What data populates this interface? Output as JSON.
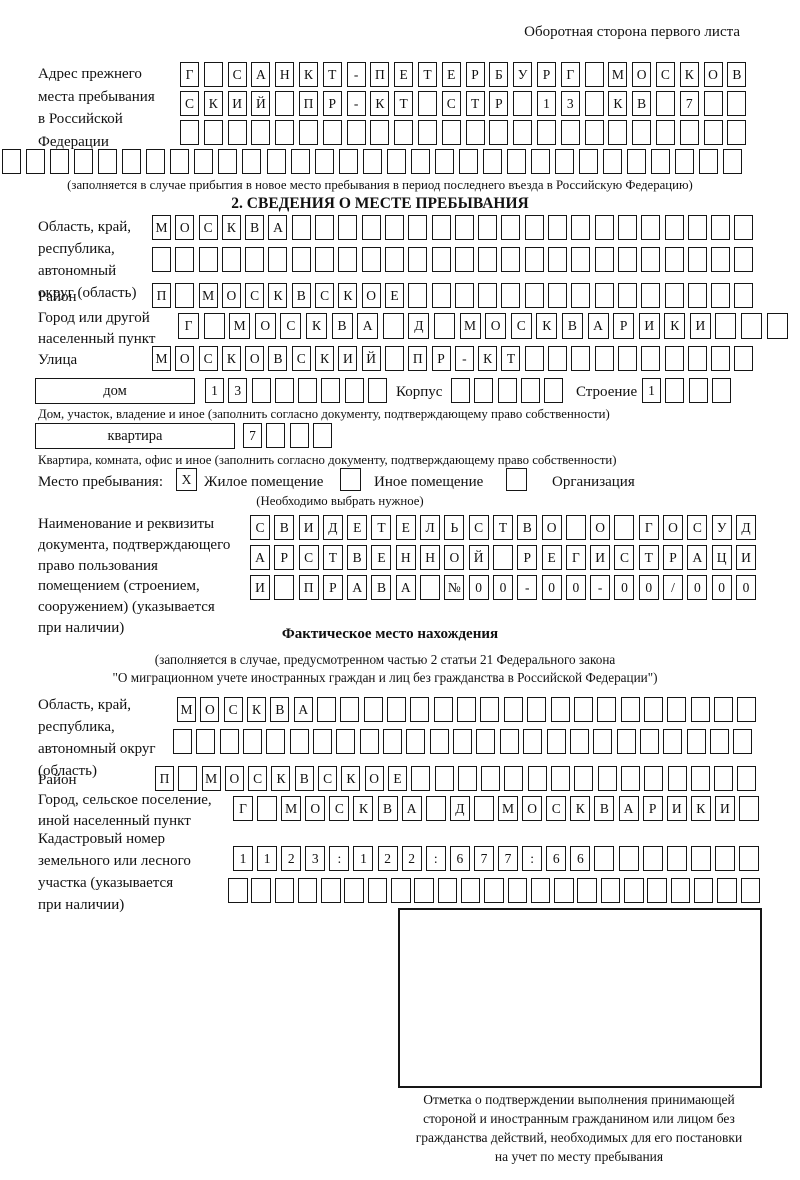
{
  "page_title": "Оборотная сторона первого листа",
  "prev_address": {
    "label": "Адрес прежнего\nместа пребывания\nв Российской\nФедерации",
    "rows": [
      [
        "Г",
        "",
        "С",
        "А",
        "Н",
        "К",
        "Т",
        "-",
        "П",
        "Е",
        "Т",
        "Е",
        "Р",
        "Б",
        "У",
        "Р",
        "Г",
        "",
        "М",
        "О",
        "С",
        "К",
        "О",
        "В"
      ],
      [
        "С",
        "К",
        "И",
        "Й",
        "",
        "П",
        "Р",
        "-",
        "К",
        "Т",
        "",
        "С",
        "Т",
        "Р",
        "",
        "1",
        "3",
        "",
        "К",
        "В",
        "",
        "7",
        "",
        ""
      ],
      [
        "",
        "",
        "",
        "",
        "",
        "",
        "",
        "",
        "",
        "",
        "",
        "",
        "",
        "",
        "",
        "",
        "",
        "",
        "",
        "",
        "",
        "",
        "",
        ""
      ],
      [
        "",
        "",
        "",
        "",
        "",
        "",
        "",
        "",
        "",
        "",
        "",
        "",
        "",
        "",
        "",
        "",
        "",
        "",
        "",
        "",
        "",
        "",
        "",
        "",
        "",
        "",
        "",
        "",
        "",
        "",
        ""
      ]
    ],
    "note": "(заполняется в случае прибытия в новое место пребывания в период последнего въезда в Российскую Федерацию)"
  },
  "section2": {
    "title": "2. СВЕДЕНИЯ О МЕСТЕ ПРЕБЫВАНИЯ",
    "region": {
      "label": "Область, край,\nреспублика,\nавтономный\nокруг (область)",
      "rows": [
        [
          "М",
          "О",
          "С",
          "К",
          "В",
          "А",
          "",
          "",
          "",
          "",
          "",
          "",
          "",
          "",
          "",
          "",
          "",
          "",
          "",
          "",
          "",
          "",
          "",
          "",
          "",
          ""
        ],
        [
          "",
          "",
          "",
          "",
          "",
          "",
          "",
          "",
          "",
          "",
          "",
          "",
          "",
          "",
          "",
          "",
          "",
          "",
          "",
          "",
          "",
          "",
          "",
          "",
          "",
          ""
        ]
      ]
    },
    "district": {
      "label": "Район",
      "row": [
        "П",
        "",
        "М",
        "О",
        "С",
        "К",
        "В",
        "С",
        "К",
        "О",
        "Е",
        "",
        "",
        "",
        "",
        "",
        "",
        "",
        "",
        "",
        "",
        "",
        "",
        "",
        "",
        ""
      ]
    },
    "city": {
      "label": "Город или другой\nнаселенный пункт",
      "row": [
        "Г",
        "",
        "М",
        "О",
        "С",
        "К",
        "В",
        "А",
        "",
        "Д",
        "",
        "М",
        "О",
        "С",
        "К",
        "В",
        "А",
        "Р",
        "И",
        "К",
        "И",
        "",
        "",
        ""
      ]
    },
    "street": {
      "label": "Улица",
      "row": [
        "М",
        "О",
        "С",
        "К",
        "О",
        "В",
        "С",
        "К",
        "И",
        "Й",
        "",
        "П",
        "Р",
        "-",
        "К",
        "Т",
        "",
        "",
        "",
        "",
        "",
        "",
        "",
        "",
        "",
        ""
      ]
    },
    "house": {
      "box_label": "дом",
      "cells": [
        "1",
        "3",
        "",
        "",
        "",
        "",
        "",
        ""
      ],
      "korpus_label": "Корпус",
      "korpus_cells": [
        "",
        "",
        "",
        "",
        ""
      ],
      "stroenie_label": "Строение",
      "stroenie_cells": [
        "1",
        "",
        "",
        ""
      ]
    },
    "house_note": "Дом, участок, владение и иное (заполнить согласно документу, подтверждающему право собственности)",
    "apartment": {
      "box_label": "квартира",
      "cells": [
        "7",
        "",
        "",
        ""
      ]
    },
    "apartment_note": "Квартира, комната, офис и иное (заполнить согласно документу, подтверждающему право собственности)",
    "stay_type": {
      "label": "Место пребывания:",
      "options": [
        {
          "label": "Жилое помещение",
          "mark": "X"
        },
        {
          "label": "Иное помещение",
          "mark": ""
        },
        {
          "label": "Организация",
          "mark": ""
        }
      ],
      "note": "(Необходимо выбрать нужное)"
    },
    "document": {
      "label": "Наименование и реквизиты\nдокумента, подтверждающего\nправо пользования\nпомещением (строением,\nсооружением) (указывается\nпри наличии)",
      "rows": [
        [
          "С",
          "В",
          "И",
          "Д",
          "Е",
          "Т",
          "Е",
          "Л",
          "Ь",
          "С",
          "Т",
          "В",
          "О",
          "",
          "О",
          "",
          "Г",
          "О",
          "С",
          "У",
          "Д"
        ],
        [
          "А",
          "Р",
          "С",
          "Т",
          "В",
          "Е",
          "Н",
          "Н",
          "О",
          "Й",
          "",
          "Р",
          "Е",
          "Г",
          "И",
          "С",
          "Т",
          "Р",
          "А",
          "Ц",
          "И"
        ],
        [
          "И",
          "",
          "П",
          "Р",
          "А",
          "В",
          "А",
          "",
          "№",
          "0",
          "0",
          "-",
          "0",
          "0",
          "-",
          "0",
          "0",
          "/",
          "0",
          "0",
          "0"
        ]
      ]
    }
  },
  "actual_location": {
    "title": "Фактическое место нахождения",
    "note1": "(заполняется в случае, предусмотренном частью 2 статьи 21 Федерального закона",
    "note2": "\"О миграционном учете иностранных граждан и лиц без гражданства в Российской Федерации\")",
    "region": {
      "label": "Область, край,\nреспублика,\nавтономный округ\n(область)",
      "rows": [
        [
          "М",
          "О",
          "С",
          "К",
          "В",
          "А",
          "",
          "",
          "",
          "",
          "",
          "",
          "",
          "",
          "",
          "",
          "",
          "",
          "",
          "",
          "",
          "",
          "",
          "",
          ""
        ],
        [
          "",
          "",
          "",
          "",
          "",
          "",
          "",
          "",
          "",
          "",
          "",
          "",
          "",
          "",
          "",
          "",
          "",
          "",
          "",
          "",
          "",
          "",
          "",
          "",
          ""
        ]
      ]
    },
    "district": {
      "label": "Район",
      "row": [
        "П",
        "",
        "М",
        "О",
        "С",
        "К",
        "В",
        "С",
        "К",
        "О",
        "Е",
        "",
        "",
        "",
        "",
        "",
        "",
        "",
        "",
        "",
        "",
        "",
        "",
        "",
        "",
        ""
      ]
    },
    "city": {
      "label": "Город, сельское поселение,\nиной населенный пункт",
      "row": [
        "Г",
        "",
        "М",
        "О",
        "С",
        "К",
        "В",
        "А",
        "",
        "Д",
        "",
        "М",
        "О",
        "С",
        "К",
        "В",
        "А",
        "Р",
        "И",
        "К",
        "И",
        ""
      ]
    },
    "cadastre": {
      "label": "Кадастровый номер\nземельного или лесного\nучастка (указывается\nпри наличии)",
      "rows": [
        [
          "1",
          "1",
          "2",
          "3",
          ":",
          "1",
          "2",
          "2",
          ":",
          "6",
          "7",
          "7",
          ":",
          "6",
          "6",
          "",
          "",
          "",
          "",
          "",
          "",
          ""
        ],
        [
          "",
          "",
          "",
          "",
          "",
          "",
          "",
          "",
          "",
          "",
          "",
          "",
          "",
          "",
          "",
          "",
          "",
          "",
          "",
          "",
          "",
          "",
          ""
        ]
      ]
    },
    "stamp_caption": "Отметка о подтверждении выполнения принимающей\nстороной и иностранным гражданином или лицом без\nгражданства действий, необходимых для его постановки\nна учет по месту пребывания"
  }
}
